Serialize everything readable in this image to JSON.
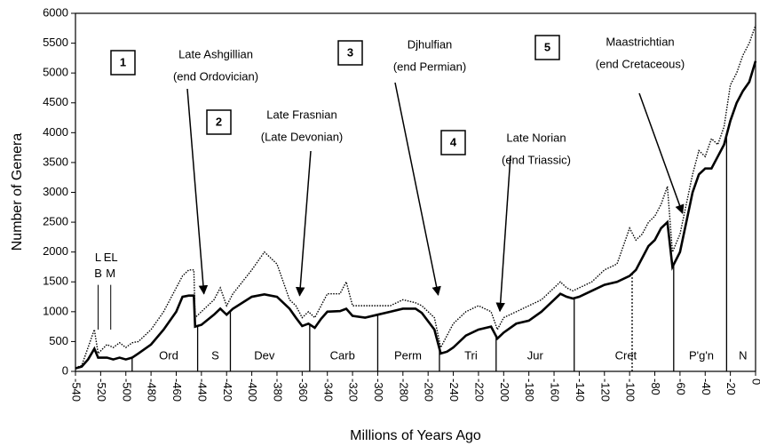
{
  "chart_data": {
    "type": "line",
    "xlabel": "Millions of Years Ago",
    "ylabel": "Number of Genera",
    "xlim": [
      -540,
      0
    ],
    "ylim": [
      0,
      6000
    ],
    "xticks": [
      -540,
      -520,
      -500,
      -480,
      -460,
      -440,
      -420,
      -400,
      -380,
      -360,
      -340,
      -320,
      -300,
      -280,
      -260,
      -240,
      -220,
      -200,
      -180,
      -160,
      -140,
      -120,
      -100,
      -80,
      -60,
      -40,
      -20,
      0
    ],
    "yticks": [
      0,
      500,
      1000,
      1500,
      2000,
      2500,
      3000,
      3500,
      4000,
      4500,
      5000,
      5500,
      6000
    ],
    "x": [
      -540,
      -535,
      -530,
      -525,
      -522,
      -515,
      -510,
      -505,
      -500,
      -495,
      -490,
      -480,
      -470,
      -460,
      -455,
      -450,
      -446,
      -445,
      -440,
      -430,
      -425,
      -420,
      -415,
      -400,
      -390,
      -380,
      -370,
      -365,
      -360,
      -355,
      -350,
      -345,
      -340,
      -330,
      -325,
      -320,
      -310,
      -300,
      -290,
      -280,
      -270,
      -265,
      -255,
      -250,
      -245,
      -240,
      -230,
      -220,
      -210,
      -205,
      -200,
      -190,
      -180,
      -170,
      -160,
      -155,
      -150,
      -145,
      -140,
      -130,
      -120,
      -110,
      -100,
      -95,
      -90,
      -85,
      -80,
      -75,
      -70,
      -66,
      -60,
      -55,
      -50,
      -45,
      -40,
      -35,
      -30,
      -25,
      -20,
      -15,
      -10,
      -5,
      0
    ],
    "series": [
      {
        "style": "solid",
        "color": "#000000",
        "values": [
          50,
          80,
          200,
          380,
          230,
          230,
          200,
          230,
          200,
          230,
          300,
          450,
          700,
          1000,
          1250,
          1270,
          1270,
          750,
          780,
          950,
          1050,
          950,
          1050,
          1250,
          1290,
          1250,
          1050,
          900,
          760,
          800,
          730,
          880,
          1000,
          1010,
          1050,
          930,
          900,
          950,
          1000,
          1050,
          1050,
          980,
          700,
          300,
          330,
          400,
          600,
          700,
          750,
          550,
          650,
          800,
          850,
          1000,
          1200,
          1300,
          1250,
          1220,
          1250,
          1350,
          1450,
          1500,
          1600,
          1700,
          1900,
          2100,
          2200,
          2400,
          2500,
          1750,
          2000,
          2500,
          3000,
          3300,
          3400,
          3400,
          3600,
          3800,
          4200,
          4500,
          4700,
          4850,
          5200
        ]
      },
      {
        "style": "dotted",
        "color": "#000000",
        "values": [
          60,
          100,
          400,
          700,
          300,
          450,
          400,
          480,
          400,
          480,
          500,
          700,
          1000,
          1400,
          1600,
          1700,
          1700,
          900,
          1000,
          1200,
          1400,
          1100,
          1300,
          1700,
          2000,
          1800,
          1200,
          1100,
          900,
          1000,
          900,
          1100,
          1300,
          1300,
          1500,
          1100,
          1100,
          1100,
          1100,
          1200,
          1150,
          1100,
          900,
          400,
          600,
          800,
          1000,
          1100,
          1000,
          700,
          900,
          1000,
          1100,
          1200,
          1400,
          1500,
          1400,
          1350,
          1400,
          1500,
          1700,
          1800,
          2400,
          2200,
          2300,
          2500,
          2600,
          2800,
          3100,
          2000,
          2300,
          2800,
          3300,
          3700,
          3600,
          3900,
          3800,
          4100,
          4800,
          5000,
          5300,
          5500,
          5800
        ]
      }
    ],
    "periods": [
      {
        "label": "Ord",
        "x": -466,
        "end": -443
      },
      {
        "label": "S",
        "x": -429,
        "end": -417
      },
      {
        "label": "Dev",
        "x": -390,
        "end": -354
      },
      {
        "label": "Carb",
        "x": -328,
        "end": -300
      },
      {
        "label": "Perm",
        "x": -276,
        "end": -251
      },
      {
        "label": "Tri",
        "x": -226,
        "end": -206
      },
      {
        "label": "Jur",
        "x": -175,
        "end": -144
      },
      {
        "label": "Cret",
        "x": -103,
        "end": -65
      },
      {
        "label": "P'g'n",
        "x": -43,
        "end": -23
      },
      {
        "label": "N",
        "x": -10
      }
    ],
    "cambrian_end": -495,
    "mid_cretaceous": -98,
    "cambrian_labels": [
      {
        "text": "L",
        "x": -522,
        "y": 1900
      },
      {
        "text": "B",
        "x": -522,
        "y": 1630
      },
      {
        "text": "EL",
        "x": -512,
        "y": 1900
      },
      {
        "text": "M",
        "x": -512,
        "y": 1630
      }
    ],
    "extinctions": [
      {
        "number": "1",
        "line1": "Late Ashgillian",
        "line2": "(end Ordovician)",
        "x": -438,
        "y": 1300
      },
      {
        "number": "2",
        "line1": "Late Frasnian",
        "line2": "(Late Devonian)",
        "x": -362,
        "y": 1270
      },
      {
        "number": "3",
        "line1": "Djhulfian",
        "line2": "(end Permian)",
        "x": -252,
        "y": 1280
      },
      {
        "number": "4",
        "line1": "Late Norian",
        "line2": "(end Triassic)",
        "x": -203,
        "y": 1010
      },
      {
        "number": "5",
        "line1": "Maastrichtian",
        "line2": "(end Cretaceous)",
        "x": -58,
        "y": 2650
      }
    ]
  }
}
